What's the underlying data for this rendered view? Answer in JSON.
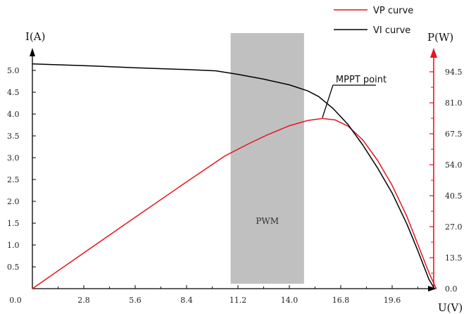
{
  "chart_data": {
    "type": "line",
    "xlabel": "U(V)",
    "ylabel_left": "I(A)",
    "ylabel_right": "P(W)",
    "x_ticks": [
      0.0,
      2.8,
      5.6,
      8.4,
      11.2,
      14.0,
      16.8,
      19.6
    ],
    "x_tick_labels": [
      "0.0",
      "2.8",
      "5.6",
      "8.4",
      "11.2",
      "14.0",
      "16.8",
      "19.6"
    ],
    "y_left_ticks": [
      0.5,
      1.0,
      1.5,
      2.0,
      2.5,
      3.0,
      3.5,
      4.0,
      4.5,
      5.0
    ],
    "y_left_tick_labels": [
      "0.5",
      "1.0",
      "1.5",
      "2.0",
      "2.5",
      "3.0",
      "3.5",
      "4.0",
      "4.5",
      "5.0"
    ],
    "y_right_ticks": [
      0.0,
      13.5,
      27.0,
      40.5,
      54.0,
      67.5,
      81.0,
      94.5
    ],
    "y_right_tick_labels": [
      "0.0",
      "13.5",
      "27.0",
      "40.5",
      "54.0",
      "67.5",
      "81.0",
      "94.5"
    ],
    "xlim": [
      0,
      23
    ],
    "ylim_left": [
      0,
      5.45
    ],
    "ylim_right": [
      0,
      103
    ],
    "grid": false,
    "legend_position": "top-right",
    "series": [
      {
        "name": "VP curve",
        "axis": "right",
        "color": "#e8141e",
        "x": [
          0,
          2.8,
          5.6,
          8.4,
          10.5,
          11.8,
          12.8,
          14.0,
          15.0,
          15.8,
          16.5,
          17.2,
          18.0,
          18.8,
          19.6,
          20.4,
          21.0,
          21.6,
          22.0
        ],
        "y": [
          0,
          15.6,
          31.1,
          46.5,
          57.9,
          63.2,
          67.0,
          71.0,
          73.3,
          74.2,
          73.5,
          70.8,
          64.8,
          56.0,
          45.0,
          31.5,
          19.3,
          7.1,
          0
        ]
      },
      {
        "name": "VI curve",
        "axis": "left",
        "color": "#000000",
        "x": [
          0,
          2.8,
          5.6,
          8.4,
          10.0,
          11.2,
          12.6,
          14.0,
          15.0,
          15.6,
          16.4,
          17.2,
          18.0,
          18.8,
          19.6,
          20.4,
          21.0,
          21.6,
          21.9
        ],
        "y": [
          5.15,
          5.11,
          5.06,
          5.02,
          4.99,
          4.91,
          4.8,
          4.67,
          4.53,
          4.4,
          4.12,
          3.76,
          3.29,
          2.77,
          2.19,
          1.48,
          0.87,
          0.22,
          0
        ]
      }
    ],
    "annotations": [
      {
        "label": "MPPT point",
        "x": 15.8,
        "y": 74.2,
        "axis": "right"
      },
      {
        "label": "PWM",
        "type": "band",
        "x_range": [
          10.8,
          14.8
        ]
      }
    ]
  },
  "colors": {
    "band": "#c0c0c0",
    "left_axis": "#000000",
    "right_axis": "#e8141e"
  }
}
